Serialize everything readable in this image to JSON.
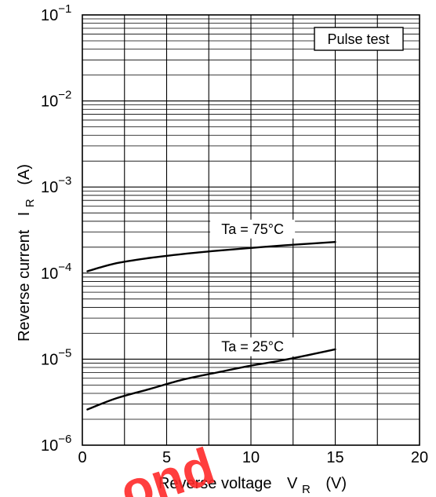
{
  "chart_data": {
    "type": "line",
    "title": "",
    "xlabel": {
      "main": "Reverse voltage",
      "symbol": "V",
      "sub": "R",
      "unit": "(V)"
    },
    "ylabel": {
      "main": "Reverse current",
      "symbol": "I",
      "sub": "R",
      "unit": "(A)"
    },
    "xlim": [
      0,
      20
    ],
    "ylim": [
      1e-06,
      0.1
    ],
    "yscale": "log",
    "grid": true,
    "x_ticks": [
      {
        "value": 0,
        "label": "0"
      },
      {
        "value": 5,
        "label": "5"
      },
      {
        "value": 10,
        "label": "10"
      },
      {
        "value": 15,
        "label": "15"
      },
      {
        "value": 20,
        "label": "20"
      }
    ],
    "y_ticks": [
      {
        "value": 1e-06,
        "base": "10",
        "exp": "−6"
      },
      {
        "value": 1e-05,
        "base": "10",
        "exp": "−5"
      },
      {
        "value": 0.0001,
        "base": "10",
        "exp": "−4"
      },
      {
        "value": 0.001,
        "base": "10",
        "exp": "−3"
      },
      {
        "value": 0.01,
        "base": "10",
        "exp": "−2"
      },
      {
        "value": 0.1,
        "base": "10",
        "exp": "−1"
      }
    ],
    "series": [
      {
        "name": "Ta = 75°C",
        "x": [
          0.3,
          2,
          4,
          6,
          8,
          10,
          12,
          15
        ],
        "y": [
          0.000105,
          0.00013,
          0.00015,
          0.000167,
          0.000182,
          0.000196,
          0.00021,
          0.00023
        ]
      },
      {
        "name": "Ta = 25°C",
        "x": [
          0.3,
          2,
          4,
          6,
          8,
          10,
          12,
          15
        ],
        "y": [
          2.6e-06,
          3.5e-06,
          4.5e-06,
          5.8e-06,
          7e-06,
          8.4e-06,
          9.8e-06,
          1.3e-05
        ]
      }
    ],
    "annotations": [
      {
        "text": "Pulse test",
        "placement": "top-right boxed"
      }
    ]
  },
  "watermark": {
    "text": "ond",
    "color": "#ff2a2a"
  }
}
